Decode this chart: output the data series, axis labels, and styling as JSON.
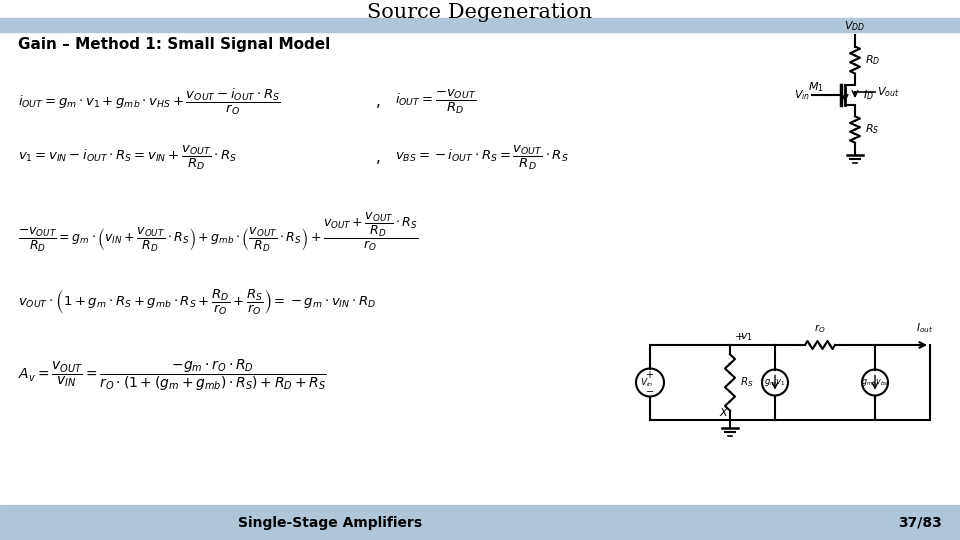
{
  "title": "Source Degeneration",
  "subtitle": "Gain – Method 1: Small Signal Model",
  "footer_left": "Single-Stage Amplifiers",
  "footer_right": "37/83",
  "bg_color": "#ffffff",
  "header_bar_color": "#aec6d8",
  "footer_bar_color": "#aec6d8",
  "title_color": "#000000",
  "subtitle_color": "#000000",
  "footer_color": "#000000"
}
